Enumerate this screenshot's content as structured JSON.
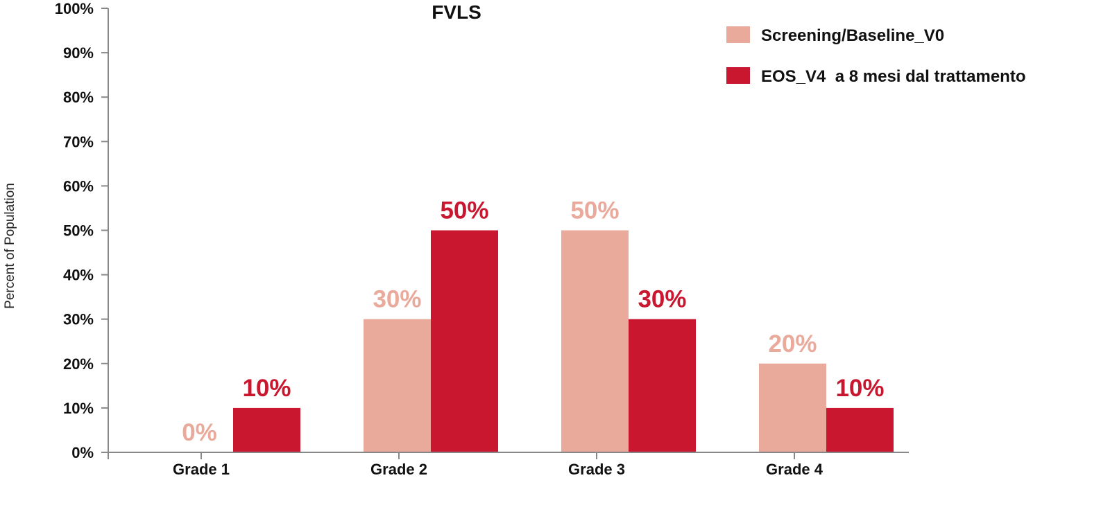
{
  "chart_data": {
    "type": "bar",
    "title": "FVLS",
    "ylabel": "Percent of Population",
    "xlabel": "",
    "categories": [
      "Grade 1",
      "Grade 2",
      "Grade 3",
      "Grade 4"
    ],
    "ylim": [
      0,
      100
    ],
    "yticks": [
      "0%",
      "10%",
      "20%",
      "30%",
      "40%",
      "50%",
      "60%",
      "70%",
      "80%",
      "90%",
      "100%"
    ],
    "grid": false,
    "legend_position": "top-right",
    "series": [
      {
        "name": "Screening/Baseline_V0",
        "color": "#E9A99B",
        "values": [
          0,
          30,
          50,
          20
        ],
        "labels": [
          "0%",
          "30%",
          "50%",
          "20%"
        ]
      },
      {
        "name": "EOS_V4  a 8 mesi dal trattamento",
        "color": "#C8172E",
        "values": [
          10,
          50,
          30,
          10
        ],
        "labels": [
          "10%",
          "50%",
          "30%",
          "10%"
        ]
      }
    ]
  }
}
